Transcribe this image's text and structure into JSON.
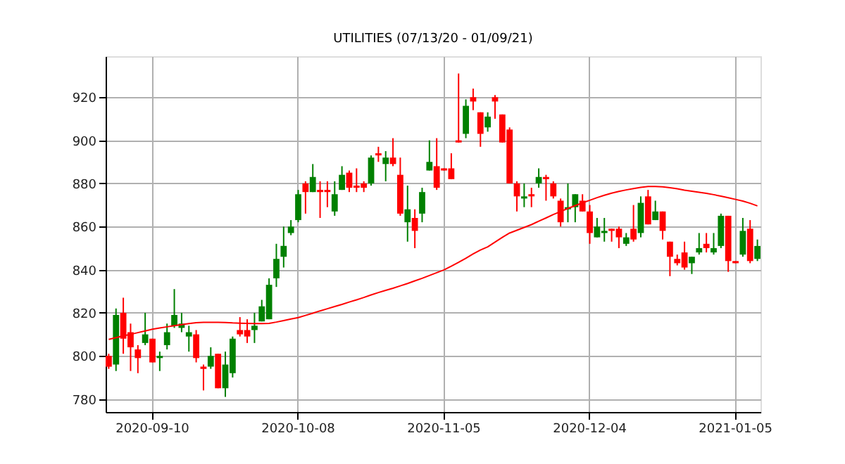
{
  "chart_data": {
    "type": "candlestick",
    "title": "UTILITIES (07/13/20 - 01/09/21)",
    "categories": [
      null,
      null,
      null,
      null,
      null,
      null,
      "2020-09-10",
      null,
      null,
      null,
      null,
      null,
      null,
      null,
      null,
      null,
      null,
      null,
      null,
      null,
      null,
      null,
      null,
      null,
      null,
      null,
      "2020-10-08",
      null,
      null,
      null,
      null,
      null,
      null,
      null,
      null,
      null,
      null,
      null,
      null,
      null,
      null,
      null,
      null,
      null,
      null,
      null,
      "2020-11-05",
      null,
      null,
      null,
      null,
      null,
      null,
      null,
      null,
      null,
      null,
      null,
      null,
      null,
      null,
      null,
      null,
      null,
      null,
      null,
      "2020-12-04",
      null,
      null,
      null,
      null,
      null,
      null,
      null,
      null,
      null,
      null,
      null,
      null,
      null,
      null,
      null,
      null,
      null,
      null,
      null,
      "2021-01-05",
      null,
      null,
      null
    ],
    "ohlc": [
      [
        800,
        801,
        794,
        795
      ],
      [
        796,
        822,
        793,
        819
      ],
      [
        820,
        827,
        801,
        808
      ],
      [
        811,
        815,
        793,
        804
      ],
      [
        803,
        805,
        792,
        799
      ],
      [
        806,
        820,
        805,
        810
      ],
      [
        808,
        808,
        797,
        797
      ],
      [
        799,
        802,
        793,
        800
      ],
      [
        805,
        815,
        803,
        811
      ],
      [
        814,
        831,
        813,
        819
      ],
      [
        813,
        820,
        811,
        815
      ],
      [
        809,
        814,
        802,
        811
      ],
      [
        810,
        812,
        797,
        799
      ],
      [
        795,
        796,
        784,
        794
      ],
      [
        795,
        804,
        794,
        800
      ],
      [
        801,
        801,
        785,
        785
      ],
      [
        785,
        802,
        781,
        796
      ],
      [
        792,
        809,
        790,
        808
      ],
      [
        812,
        818,
        809,
        810
      ],
      [
        812,
        817,
        806,
        809
      ],
      [
        812,
        820,
        806,
        814
      ],
      [
        816,
        826,
        816,
        823
      ],
      [
        817,
        836,
        817,
        833
      ],
      [
        836,
        852,
        832,
        845
      ],
      [
        846,
        860,
        841,
        851
      ],
      [
        857,
        863,
        856,
        860
      ],
      [
        863,
        877,
        862,
        875
      ],
      [
        880,
        881,
        866,
        876
      ],
      [
        876,
        889,
        876,
        883
      ],
      [
        877,
        881,
        864,
        876
      ],
      [
        877,
        881,
        869,
        876
      ],
      [
        867,
        881,
        865,
        875
      ],
      [
        877,
        888,
        877,
        884
      ],
      [
        885,
        886,
        876,
        878
      ],
      [
        879,
        887,
        876,
        878
      ],
      [
        880,
        881,
        876,
        878
      ],
      [
        880,
        893,
        879,
        892
      ],
      [
        894,
        897,
        890,
        893
      ],
      [
        889,
        895,
        881,
        892
      ],
      [
        892,
        901,
        888,
        889
      ],
      [
        884,
        892,
        865,
        866
      ],
      [
        862,
        879,
        853,
        868
      ],
      [
        864,
        868,
        850,
        858
      ],
      [
        866,
        878,
        862,
        876
      ],
      [
        886,
        900,
        886,
        890
      ],
      [
        888,
        901,
        877,
        878
      ],
      [
        887,
        887,
        886,
        886
      ],
      [
        887,
        894,
        882,
        882
      ],
      [
        900,
        931,
        899,
        899
      ],
      [
        903,
        919,
        901,
        916
      ],
      [
        920,
        924,
        914,
        918
      ],
      [
        913,
        913,
        897,
        903
      ],
      [
        906,
        913,
        904,
        911
      ],
      [
        920,
        921,
        910,
        918
      ],
      [
        912,
        912,
        899,
        899
      ],
      [
        905,
        906,
        880,
        880
      ],
      [
        880,
        881,
        867,
        874
      ],
      [
        873,
        880,
        869,
        874
      ],
      [
        875,
        878,
        869,
        874
      ],
      [
        880,
        887,
        878,
        883
      ],
      [
        883,
        884,
        872,
        882
      ],
      [
        880,
        881,
        873,
        874
      ],
      [
        872,
        873,
        860,
        862
      ],
      [
        868,
        880,
        862,
        869
      ],
      [
        869,
        875,
        862,
        875
      ],
      [
        872,
        875,
        867,
        867
      ],
      [
        867,
        870,
        852,
        857
      ],
      [
        855,
        864,
        855,
        860
      ],
      [
        857,
        864,
        853,
        858
      ],
      [
        859,
        859,
        853,
        858
      ],
      [
        859,
        860,
        850,
        855
      ],
      [
        852,
        857,
        851,
        855
      ],
      [
        859,
        870,
        853,
        854
      ],
      [
        857,
        874,
        855,
        871
      ],
      [
        874,
        877,
        861,
        861
      ],
      [
        863,
        872,
        863,
        867
      ],
      [
        867,
        867,
        854,
        858
      ],
      [
        853,
        853,
        837,
        846
      ],
      [
        845,
        847,
        842,
        843
      ],
      [
        848,
        853,
        840,
        841
      ],
      [
        843,
        846,
        838,
        846
      ],
      [
        848,
        857,
        847,
        850
      ],
      [
        852,
        857,
        848,
        850
      ],
      [
        848,
        857,
        847,
        850
      ],
      [
        851,
        866,
        850,
        865
      ],
      [
        865,
        865,
        839,
        844
      ],
      [
        844,
        844,
        843,
        843
      ],
      [
        847,
        864,
        846,
        858
      ],
      [
        859,
        863,
        843,
        844
      ],
      [
        845,
        854,
        844,
        851
      ]
    ],
    "colors": [
      "#ff0000",
      "#008000",
      "#ff0000",
      "#ff0000",
      "#ff0000",
      "#008000",
      "#ff0000",
      "#008000",
      "#008000",
      "#008000",
      "#008000",
      "#008000",
      "#ff0000",
      "#ff0000",
      "#008000",
      "#ff0000",
      "#008000",
      "#008000",
      "#ff0000",
      "#ff0000",
      "#008000",
      "#008000",
      "#008000",
      "#008000",
      "#008000",
      "#008000",
      "#008000",
      "#ff0000",
      "#008000",
      "#ff0000",
      "#ff0000",
      "#008000",
      "#008000",
      "#ff0000",
      "#ff0000",
      "#ff0000",
      "#008000",
      "#ff0000",
      "#008000",
      "#ff0000",
      "#ff0000",
      "#008000",
      "#ff0000",
      "#008000",
      "#008000",
      "#ff0000",
      "#ff0000",
      "#ff0000",
      "#ff0000",
      "#008000",
      "#ff0000",
      "#ff0000",
      "#008000",
      "#ff0000",
      "#ff0000",
      "#ff0000",
      "#ff0000",
      "#008000",
      "#ff0000",
      "#008000",
      "#ff0000",
      "#ff0000",
      "#ff0000",
      "#008000",
      "#008000",
      "#ff0000",
      "#ff0000",
      "#008000",
      "#008000",
      "#ff0000",
      "#ff0000",
      "#008000",
      "#ff0000",
      "#008000",
      "#ff0000",
      "#008000",
      "#ff0000",
      "#ff0000",
      "#ff0000",
      "#ff0000",
      "#008000",
      "#008000",
      "#ff0000",
      "#008000",
      "#008000",
      "#ff0000",
      "#ff0000",
      "#008000",
      "#ff0000",
      "#008000"
    ],
    "series": [
      {
        "type": "line",
        "color": "#ff0000",
        "values": [
          807.7,
          808.5,
          809.3,
          810,
          810.8,
          811.6,
          812.4,
          813,
          813.5,
          814,
          814.5,
          815,
          815.4,
          815.6,
          815.6,
          815.6,
          815.5,
          815.3,
          815.2,
          815.1,
          815,
          815,
          815.1,
          815.7,
          816.4,
          817.1,
          817.8,
          818.8,
          819.8,
          820.9,
          821.9,
          822.9,
          823.9,
          825,
          826,
          827.1,
          828.3,
          829.4,
          830.4,
          831.4,
          832.5,
          833.6,
          834.8,
          836,
          837.3,
          838.6,
          839.9,
          841.6,
          843.4,
          845.3,
          847.3,
          849.1,
          850.6,
          852.8,
          855,
          857,
          858.3,
          859.6,
          860.9,
          862.5,
          864,
          865.6,
          867,
          868.4,
          869.7,
          871,
          872.2,
          873.4,
          874.5,
          875.5,
          876.3,
          877,
          877.6,
          878.2,
          878.6,
          878.6,
          878.4,
          878,
          877.5,
          876.9,
          876.4,
          875.9,
          875.4,
          874.8,
          874.1,
          873.4,
          872.6,
          871.8,
          870.8,
          869.6
        ]
      }
    ],
    "ylim": [
      774,
      939
    ],
    "yticks": [
      780,
      800,
      820,
      840,
      860,
      880,
      900,
      920
    ],
    "grid": true
  }
}
